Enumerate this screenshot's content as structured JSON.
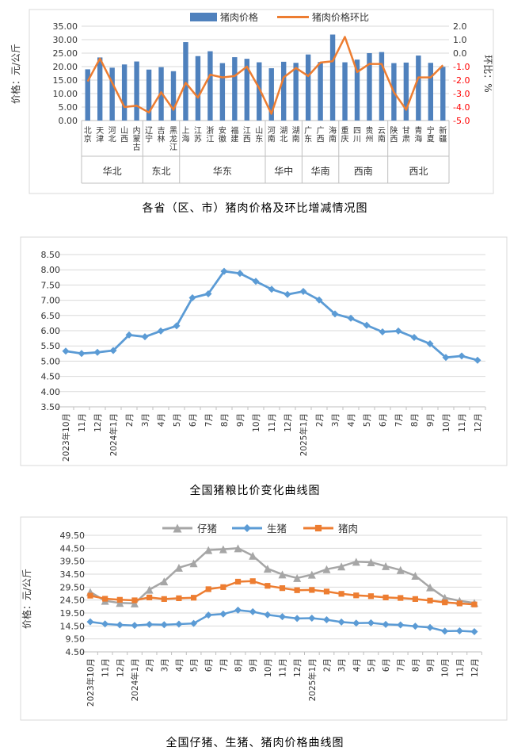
{
  "page": {
    "background": "#FFFFFF"
  },
  "colors": {
    "bar_blue": "#4F81BD",
    "orange": "#ED7D31",
    "line_blue": "#5B9BD5",
    "gray": "#A6A6A6",
    "grid": "#D9D9D9",
    "axis": "#BFBFBF",
    "text": "#333333",
    "negative_red": "#FF0000",
    "border": "#D9D9D9"
  },
  "chart_data": [
    {
      "type": "bar",
      "combo": "bar+line",
      "title": "各省（区、市）猪肉价格及环比增减情况图",
      "legend": [
        "猪肉价格",
        "猪肉价格环比"
      ],
      "legend_position": "top",
      "grid": true,
      "y_left": {
        "label": "价格：元/公斤",
        "min": 0,
        "max": 35,
        "step": 5
      },
      "y_right": {
        "label": "环比：%",
        "min": -5,
        "max": 2,
        "step": 1
      },
      "categories": [
        "北京",
        "天津",
        "河北",
        "山西",
        "内蒙古",
        "辽宁",
        "吉林",
        "黑龙江",
        "上海",
        "江苏",
        "浙江",
        "安徽",
        "福建",
        "江西",
        "山东",
        "河南",
        "湖北",
        "湖南",
        "广东",
        "广西",
        "海南",
        "重庆",
        "四川",
        "贵州",
        "云南",
        "陕西",
        "甘肃",
        "青海",
        "宁夏",
        "新疆"
      ],
      "region_groups": [
        {
          "label": "华北",
          "count": 5
        },
        {
          "label": "东北",
          "count": 3
        },
        {
          "label": "华东",
          "count": 7
        },
        {
          "label": "华中",
          "count": 3
        },
        {
          "label": "华南",
          "count": 3
        },
        {
          "label": "西南",
          "count": 4
        },
        {
          "label": "西北",
          "count": 5
        }
      ],
      "series": [
        {
          "name": "猪肉价格",
          "chart": "bar",
          "axis": "left",
          "color": "#4F81BD",
          "values": [
            19.0,
            23.4,
            19.6,
            20.8,
            21.9,
            18.9,
            19.8,
            18.3,
            29.1,
            23.9,
            25.7,
            21.3,
            23.5,
            22.9,
            21.6,
            19.4,
            21.8,
            21.4,
            24.5,
            21.7,
            31.9,
            21.6,
            22.6,
            25.0,
            25.4,
            21.3,
            21.5,
            24.1,
            21.4,
            19.9
          ]
        },
        {
          "name": "猪肉价格环比",
          "chart": "line",
          "axis": "right",
          "color": "#ED7D31",
          "values": [
            -2.1,
            -0.4,
            -2.2,
            -4.0,
            -3.9,
            -4.4,
            -2.9,
            -4.2,
            -2.2,
            -3.3,
            -1.6,
            -1.8,
            -1.7,
            -1.0,
            -2.6,
            -4.5,
            -1.8,
            -1.1,
            -1.7,
            -0.7,
            -0.6,
            1.2,
            -1.4,
            -0.8,
            -0.8,
            -2.9,
            -4.2,
            -1.8,
            -1.8,
            -0.9
          ]
        }
      ]
    },
    {
      "type": "line",
      "title": "全国猪粮比价变化曲线图",
      "ylim": [
        3.5,
        8.5
      ],
      "ystep": 0.5,
      "grid": true,
      "legend_position": "none",
      "x": [
        "2023年10月",
        "11月",
        "12月",
        "2024年1月",
        "2月",
        "3月",
        "4月",
        "5月",
        "6月",
        "7月",
        "8月",
        "9月",
        "10月",
        "11月",
        "12月",
        "2025年1月",
        "2月",
        "3月",
        "4月",
        "5月",
        "6月",
        "7月",
        "8月",
        "9月",
        "10月",
        "11月",
        "12月"
      ],
      "series": [
        {
          "name": "猪粮比价",
          "color": "#5B9BD5",
          "marker": "diamond",
          "values": [
            5.33,
            5.25,
            5.29,
            5.35,
            5.86,
            5.8,
            5.99,
            6.16,
            7.08,
            7.21,
            7.95,
            7.88,
            7.62,
            7.36,
            7.19,
            7.29,
            7.01,
            6.55,
            6.41,
            6.18,
            5.96,
            5.99,
            5.78,
            5.57,
            5.12,
            5.17,
            5.03
          ]
        }
      ]
    },
    {
      "type": "line",
      "title": "全国仔猪、生猪、猪肉价格曲线图",
      "ylabel": "价格：元/公斤",
      "ylim": [
        4.5,
        49.5
      ],
      "ystep": 5,
      "grid": true,
      "legend": [
        "仔猪",
        "生猪",
        "猪肉"
      ],
      "legend_position": "top",
      "x": [
        "2023年10月",
        "11月",
        "12月",
        "2024年1月",
        "2月",
        "3月",
        "4月",
        "5月",
        "6月",
        "7月",
        "8月",
        "9月",
        "10月",
        "11月",
        "12月",
        "2025年1月",
        "2月",
        "3月",
        "4月",
        "5月",
        "6月",
        "7月",
        "8月",
        "9月",
        "10月",
        "11月",
        "12月"
      ],
      "series": [
        {
          "name": "仔猪",
          "color": "#A6A6A6",
          "marker": "triangle",
          "values": [
            27.6,
            24.2,
            23.4,
            23.2,
            28.5,
            31.7,
            37.0,
            38.7,
            43.8,
            44.1,
            44.5,
            41.6,
            36.6,
            34.4,
            33.0,
            34.3,
            36.4,
            37.5,
            39.3,
            39.1,
            37.6,
            36.1,
            33.9,
            29.4,
            25.4,
            24.2,
            23.4
          ]
        },
        {
          "name": "生猪",
          "color": "#5B9BD5",
          "marker": "diamond",
          "values": [
            16.1,
            15.3,
            14.9,
            14.7,
            15.1,
            15.0,
            15.2,
            15.5,
            18.7,
            19.1,
            20.6,
            20.0,
            18.8,
            18.1,
            17.4,
            17.5,
            16.9,
            16.0,
            15.6,
            15.7,
            15.1,
            14.9,
            14.4,
            13.9,
            12.5,
            12.6,
            12.3
          ]
        },
        {
          "name": "猪肉",
          "color": "#ED7D31",
          "marker": "square",
          "values": [
            26.2,
            25.0,
            24.6,
            24.4,
            25.5,
            24.9,
            25.2,
            25.4,
            28.7,
            29.5,
            31.6,
            31.8,
            30.0,
            29.1,
            28.3,
            28.4,
            27.8,
            26.9,
            26.3,
            26.0,
            25.5,
            25.3,
            24.9,
            24.3,
            23.6,
            23.2,
            22.8
          ]
        }
      ]
    }
  ]
}
